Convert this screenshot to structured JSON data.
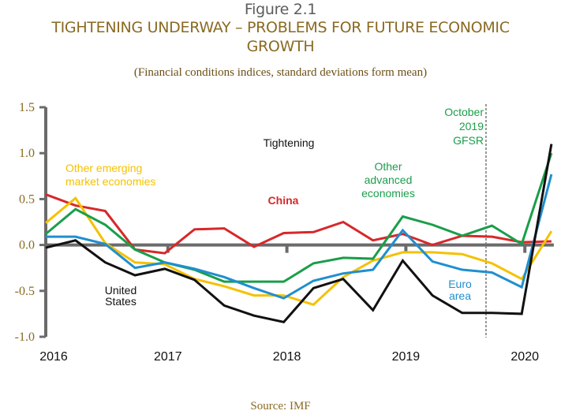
{
  "figure_label": "Figure 2.1",
  "title": "TIGHTENING UNDERWAY – PROBLEMS FOR FUTURE ECONOMIC GROWTH",
  "subtitle": "(Financial conditions indices, standard deviations form mean)",
  "source": "Source: IMF",
  "chart_data": {
    "type": "line",
    "title": "TIGHTENING UNDERWAY – PROBLEMS FOR FUTURE ECONOMIC GROWTH",
    "subtitle": "(Financial conditions indices, standard deviations form mean)",
    "xlabel": "",
    "ylabel": "",
    "x": [
      "2016Q1",
      "2016Q2",
      "2016Q3",
      "2016Q4",
      "2017Q1",
      "2017Q2",
      "2017Q3",
      "2017Q4",
      "2018Q1",
      "2018Q2",
      "2018Q3",
      "2018Q4",
      "2019Q1",
      "2019Q2",
      "2019Q3",
      "2019Q4",
      "2020Q1",
      "2020Q2"
    ],
    "x_ticks": [
      {
        "label": "2016",
        "index": 0
      },
      {
        "label": "2017",
        "index": 4
      },
      {
        "label": "2018",
        "index": 8
      },
      {
        "label": "2019",
        "index": 12
      },
      {
        "label": "2020",
        "index": 16
      }
    ],
    "ylim": [
      -1.0,
      1.5
    ],
    "y_ticks": [
      {
        "value": 1.5,
        "label": "1.5"
      },
      {
        "value": 1.0,
        "label": "1.0"
      },
      {
        "value": 0.5,
        "label": "0.5"
      },
      {
        "value": 0.0,
        "label": "0.0"
      },
      {
        "value": -0.5,
        "label": "-0.5"
      },
      {
        "value": -1.0,
        "label": "-1.0"
      }
    ],
    "grid": false,
    "legend": "inline labels",
    "series": [
      {
        "name": "China",
        "color": "#d7282a",
        "label_lines": [
          "China"
        ],
        "label_pos": [
          0.15,
          0.36
        ],
        "values": [
          0.55,
          0.43,
          0.37,
          -0.05,
          -0.09,
          0.17,
          0.18,
          -0.02,
          0.13,
          0.14,
          0.25,
          0.05,
          0.12,
          0.0,
          0.1,
          0.09,
          0.03,
          0.04
        ]
      },
      {
        "name": "Other emerging market economies",
        "color": "#f5c100",
        "label_lines": [
          "Other emerging",
          "market economies"
        ],
        "label_pos": [
          0.2,
          0.8
        ],
        "values": [
          0.24,
          0.51,
          0.02,
          -0.19,
          -0.21,
          -0.37,
          -0.45,
          -0.55,
          -0.55,
          -0.65,
          -0.35,
          -0.17,
          -0.08,
          -0.08,
          -0.1,
          -0.2,
          -0.37,
          0.15
        ]
      },
      {
        "name": "Other advanced economies",
        "color": "#1a9e4a",
        "label_lines": [
          "Other",
          "advanced",
          "economies"
        ],
        "label_pos": [
          0.5,
          0.75
        ],
        "values": [
          0.12,
          0.39,
          0.22,
          -0.05,
          -0.19,
          -0.27,
          -0.4,
          -0.4,
          -0.4,
          -0.2,
          -0.14,
          -0.15,
          0.31,
          0.22,
          0.1,
          0.21,
          0.01,
          1.0
        ]
      },
      {
        "name": "Euro area",
        "color": "#1f8fd0",
        "label_lines": [
          "Euro",
          "area"
        ],
        "label_pos": [
          0.6,
          -0.5
        ],
        "values": [
          0.09,
          0.09,
          0.01,
          -0.25,
          -0.19,
          -0.26,
          -0.35,
          -0.47,
          -0.58,
          -0.39,
          -0.31,
          -0.27,
          0.16,
          -0.18,
          -0.27,
          -0.3,
          -0.46,
          0.77
        ]
      },
      {
        "name": "United States",
        "color": "#111111",
        "label_lines": [
          "United",
          "States"
        ],
        "label_pos": [
          0.2,
          -0.55
        ],
        "values": [
          -0.03,
          0.05,
          -0.19,
          -0.33,
          -0.26,
          -0.38,
          -0.66,
          -0.77,
          -0.84,
          -0.47,
          -0.37,
          -0.71,
          -0.17,
          -0.55,
          -0.74,
          -0.74,
          -0.75,
          1.1
        ]
      }
    ],
    "annotations": [
      {
        "text": "Tightening",
        "color": "#111111"
      },
      {
        "text_lines": [
          "October",
          "2019",
          "GFSR"
        ],
        "color": "#1a9e4a",
        "marker": "vertical dashed line at 2019Q4"
      }
    ]
  }
}
